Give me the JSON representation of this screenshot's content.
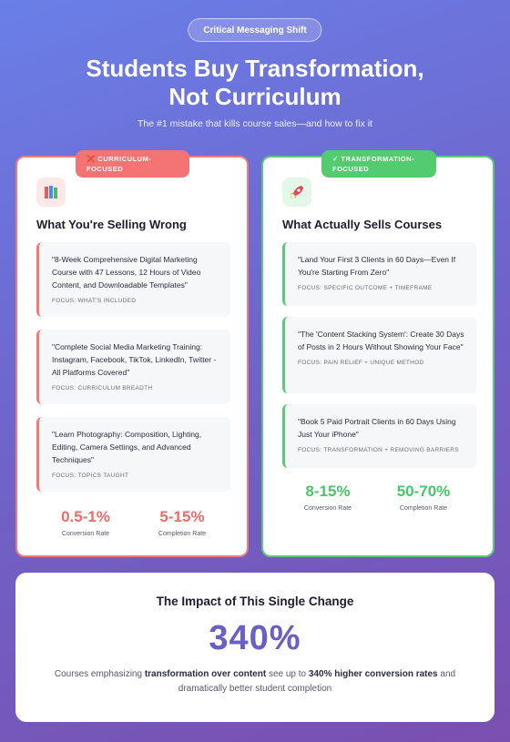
{
  "header": {
    "pill": "Critical Messaging Shift",
    "title_line1": "Students Buy Transformation,",
    "title_line2": "Not Curriculum",
    "subtitle": "The #1 mistake that kills course sales—and how to fix it"
  },
  "left_card": {
    "badge": "❌ CURRICULUM-\nFOCUSED",
    "icon": "books-icon",
    "heading": "What You're Selling Wrong",
    "items": [
      {
        "quote": "\"8-Week Comprehensive Digital Marketing Course with 47 Lessons, 12 Hours of Video Content, and Downloadable Templates\"",
        "focus": "FOCUS: WHAT'S INCLUDED"
      },
      {
        "quote": "\"Complete Social Media Marketing Training: Instagram, Facebook, TikTok, LinkedIn, Twitter - All Platforms Covered\"",
        "focus": "FOCUS: CURRICULUM BREADTH"
      },
      {
        "quote": "\"Learn Photography: Composition, Lighting, Editing, Camera Settings, and Advanced Techniques\"",
        "focus": "FOCUS: TOPICS TAUGHT"
      }
    ],
    "stats": [
      {
        "value": "0.5-1%",
        "label": "Conversion Rate"
      },
      {
        "value": "5-15%",
        "label": "Completion Rate"
      }
    ],
    "accent": "#f07a7a"
  },
  "right_card": {
    "badge": "✓ TRANSFORMATION-\nFOCUSED",
    "icon": "rocket-icon",
    "heading": "What Actually Sells Courses",
    "items": [
      {
        "quote": "\"Land Your First 3 Clients in 60 Days—Even If You're Starting From Zero\"",
        "focus": "FOCUS: SPECIFIC OUTCOME + TIMEFRAME"
      },
      {
        "quote": "\"The 'Content Stacking System': Create 30 Days of Posts in 2 Hours Without Showing Your Face\"",
        "focus": "FOCUS: PAIN RELIEF + UNIQUE METHOD"
      },
      {
        "quote": "\"Book 5 Paid Portrait Clients in 60 Days Using Just Your iPhone\"",
        "focus": "FOCUS: TRANSFORMATION + REMOVING BARRIERS"
      }
    ],
    "stats": [
      {
        "value": "8-15%",
        "label": "Conversion Rate"
      },
      {
        "value": "50-70%",
        "label": "Completion Rate"
      }
    ],
    "accent": "#5cc87a"
  },
  "impact": {
    "heading": "The Impact of This Single Change",
    "big_number": "340%",
    "desc_part1": "Courses emphasizing ",
    "desc_bold1": "transformation over content",
    "desc_part2": " see up to ",
    "desc_bold2": "340% higher conversion rates",
    "desc_part3": " and dramatically better student completion"
  }
}
